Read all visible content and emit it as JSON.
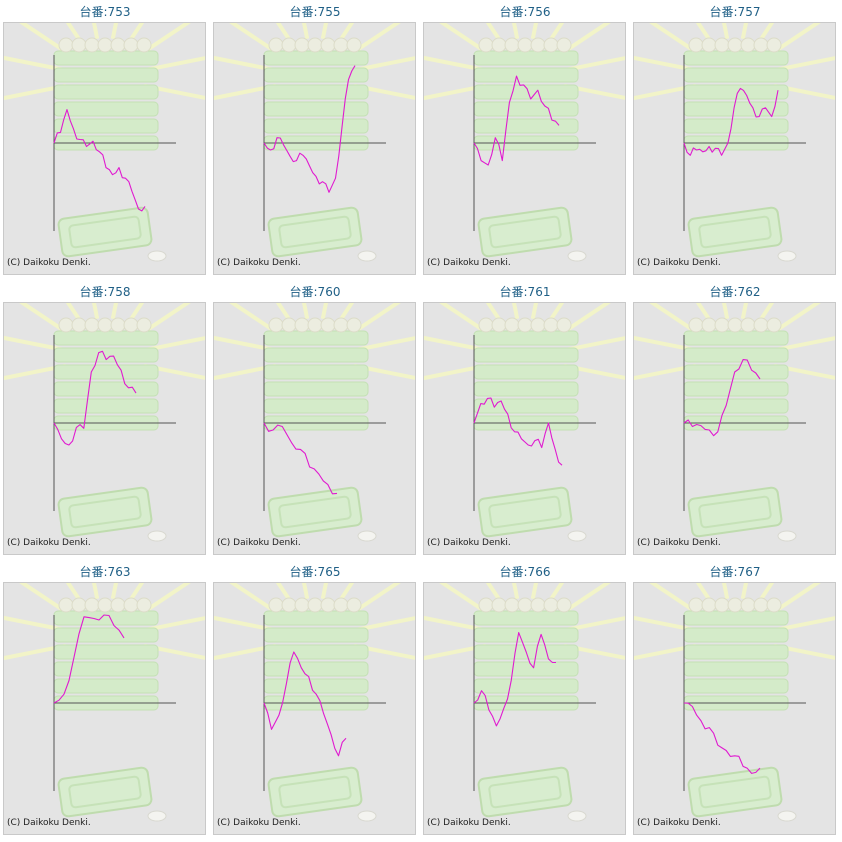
{
  "credit": "(C) Daikoku Denki.",
  "colors": {
    "line": "#e01ad0",
    "axis": "#555555",
    "title": "#1f5f86",
    "panel": "#e4e4e4"
  },
  "chart_data": [
    {
      "type": "line",
      "title": "台番:753",
      "values": [
        0,
        12,
        38,
        16,
        4,
        -4,
        2,
        -10,
        -28,
        -36,
        -28,
        -40,
        -55,
        -75,
        -72
      ]
    },
    {
      "type": "line",
      "title": "台番:755",
      "values": [
        0,
        -8,
        6,
        -2,
        -15,
        -20,
        -14,
        -26,
        -38,
        -44,
        -56,
        -40,
        18,
        72,
        88
      ]
    },
    {
      "type": "line",
      "title": "台番:756",
      "values": [
        0,
        -20,
        -25,
        6,
        -20,
        46,
        76,
        66,
        50,
        60,
        42,
        26,
        20
      ]
    },
    {
      "type": "line",
      "title": "台番:757",
      "values": [
        0,
        -14,
        -8,
        -10,
        -4,
        -6,
        -14,
        0,
        40,
        62,
        54,
        40,
        30,
        40,
        30,
        60
      ]
    },
    {
      "type": "line",
      "title": "台番:758",
      "values": [
        0,
        -18,
        -25,
        -5,
        -6,
        58,
        80,
        72,
        76,
        60,
        40,
        34
      ]
    },
    {
      "type": "line",
      "title": "台番:760",
      "values": [
        0,
        -8,
        -4,
        -22,
        -30,
        -50,
        -58,
        -70,
        -80
      ]
    },
    {
      "type": "line",
      "title": "台番:761",
      "values": [
        0,
        22,
        28,
        18,
        25,
        10,
        -10,
        -18,
        -25,
        -20,
        -28,
        0,
        -30,
        -48
      ]
    },
    {
      "type": "line",
      "title": "台番:762",
      "values": [
        0,
        -4,
        -3,
        -8,
        -10,
        20,
        58,
        72,
        60,
        50
      ]
    },
    {
      "type": "line",
      "title": "台番:763",
      "values": [
        0,
        10,
        52,
        98,
        96,
        100,
        88,
        74
      ]
    },
    {
      "type": "line",
      "title": "台番:765",
      "values": [
        0,
        -30,
        -14,
        22,
        58,
        40,
        30,
        10,
        -12,
        -36,
        -60,
        -40
      ]
    },
    {
      "type": "line",
      "title": "台番:766",
      "values": [
        0,
        14,
        -8,
        -26,
        -6,
        26,
        80,
        58,
        40,
        78,
        50,
        46
      ]
    },
    {
      "type": "line",
      "title": "台番:767",
      "values": [
        0,
        -4,
        -20,
        -28,
        -48,
        -54,
        -60,
        -72,
        -80,
        -74
      ]
    }
  ]
}
